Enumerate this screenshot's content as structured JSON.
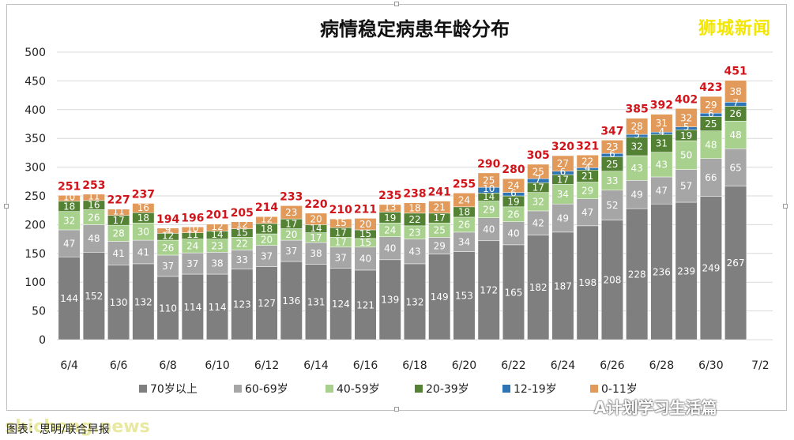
{
  "brand": "狮城新闻",
  "watermark": "shicheng.news",
  "caption": "图表：思明/联合早报",
  "wechat_label": "A计划学习生活篇",
  "chart_data": {
    "type": "bar",
    "stacked": true,
    "title": "病情稳定病患年龄分布",
    "ylim": [
      0,
      500
    ],
    "yticks": [
      0,
      50,
      100,
      150,
      200,
      250,
      300,
      350,
      400,
      450,
      500
    ],
    "x_tick_labels": [
      "6/4",
      "6/6",
      "6/8",
      "6/10",
      "6/12",
      "6/14",
      "6/16",
      "6/18",
      "6/20",
      "6/22",
      "6/24",
      "6/26",
      "6/28",
      "6/30",
      "7/2"
    ],
    "categories": [
      "6/4",
      "6/5",
      "6/6",
      "6/7",
      "6/8",
      "6/9",
      "6/10",
      "6/11",
      "6/12",
      "6/13",
      "6/14",
      "6/15",
      "6/16",
      "6/17",
      "6/18",
      "6/19",
      "6/20",
      "6/21",
      "6/22",
      "6/23",
      "6/24",
      "6/25",
      "6/26",
      "6/27",
      "6/28",
      "6/29",
      "6/30",
      "7/1",
      "7/2"
    ],
    "totals": [
      251,
      253,
      227,
      237,
      194,
      196,
      201,
      205,
      214,
      233,
      220,
      210,
      211,
      235,
      238,
      241,
      255,
      290,
      280,
      305,
      320,
      321,
      347,
      385,
      392,
      402,
      423,
      451,
      null
    ],
    "legend_position": "bottom",
    "series": [
      {
        "name": "70岁以上",
        "color": "#7f7f7f",
        "values": [
          144,
          152,
          130,
          132,
          110,
          114,
          114,
          123,
          127,
          136,
          131,
          124,
          121,
          139,
          132,
          149,
          153,
          172,
          165,
          182,
          187,
          198,
          208,
          228,
          236,
          239,
          249,
          267,
          null
        ]
      },
      {
        "name": "60-69岁",
        "color": "#a6a6a6",
        "values": [
          47,
          48,
          41,
          41,
          37,
          37,
          38,
          33,
          37,
          37,
          38,
          37,
          40,
          40,
          43,
          29,
          34,
          40,
          40,
          42,
          49,
          47,
          52,
          49,
          47,
          57,
          66,
          65,
          null
        ]
      },
      {
        "name": "40-59岁",
        "color": "#a9d18e",
        "values": [
          32,
          26,
          28,
          30,
          26,
          24,
          23,
          22,
          20,
          20,
          17,
          17,
          15,
          24,
          23,
          25,
          26,
          29,
          26,
          32,
          34,
          29,
          33,
          43,
          43,
          50,
          48,
          48,
          null
        ]
      },
      {
        "name": "20-39岁",
        "color": "#548235",
        "values": [
          18,
          16,
          17,
          18,
          12,
          11,
          14,
          15,
          18,
          17,
          14,
          17,
          15,
          19,
          22,
          17,
          18,
          14,
          19,
          17,
          17,
          21,
          25,
          32,
          31,
          19,
          25,
          26,
          null
        ]
      },
      {
        "name": "12-19岁",
        "color": "#2e75b6",
        "values": [
          0,
          0,
          0,
          0,
          0,
          0,
          0,
          0,
          0,
          0,
          0,
          0,
          0,
          0,
          0,
          0,
          0,
          10,
          6,
          7,
          6,
          4,
          6,
          5,
          4,
          5,
          6,
          7,
          null
        ]
      },
      {
        "name": "0-11岁",
        "color": "#e29a5b",
        "values": [
          10,
          11,
          11,
          16,
          9,
          10,
          12,
          12,
          12,
          23,
          20,
          15,
          20,
          13,
          18,
          21,
          24,
          25,
          24,
          25,
          27,
          22,
          23,
          28,
          31,
          32,
          29,
          38,
          null
        ]
      }
    ]
  }
}
